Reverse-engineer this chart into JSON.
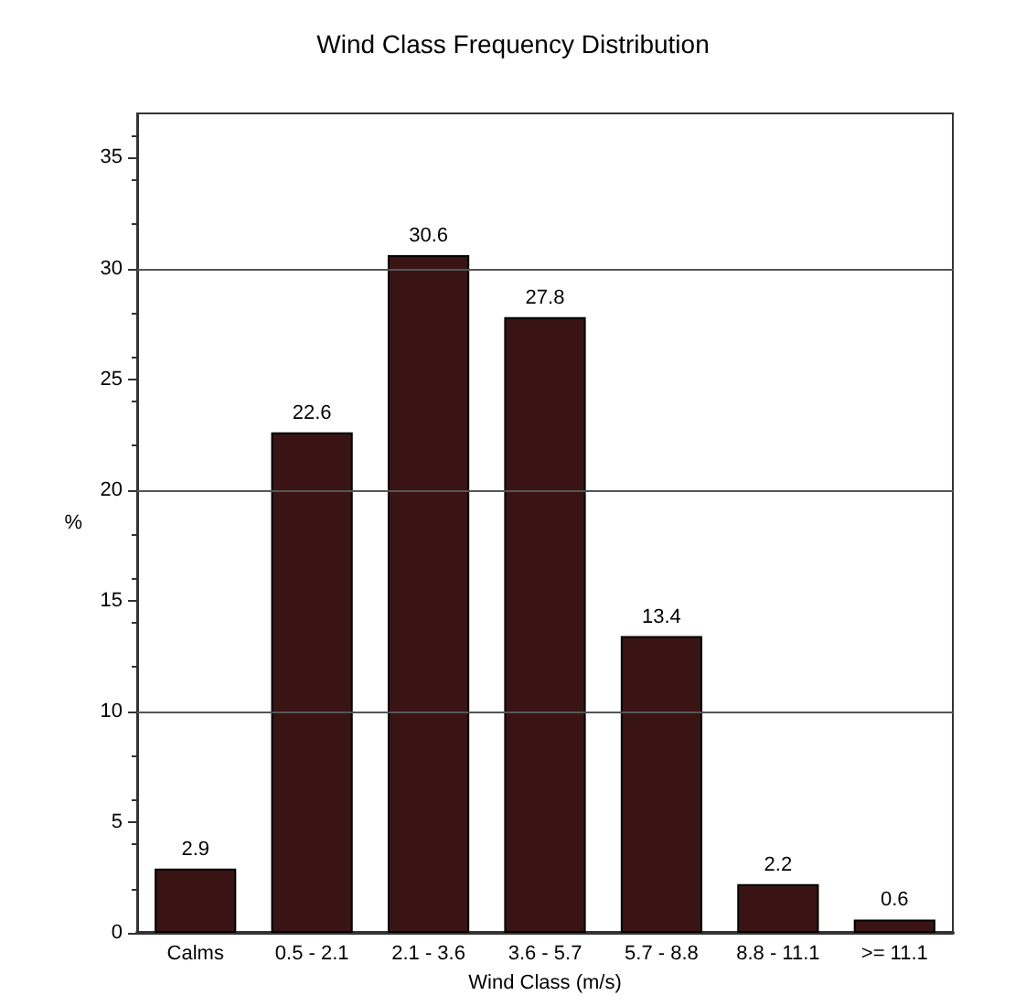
{
  "chart_data": {
    "type": "bar",
    "title": "Wind Class Frequency Distribution",
    "xlabel": "Wind Class (m/s)",
    "ylabel": "%",
    "categories": [
      "Calms",
      "0.5 - 2.1",
      "2.1 - 3.6",
      "3.6 - 5.7",
      "5.7 - 8.8",
      "8.8 - 11.1",
      ">= 11.1"
    ],
    "values": [
      2.9,
      22.6,
      30.6,
      27.8,
      13.4,
      2.2,
      0.6
    ],
    "color": "#3a1414",
    "data_labels": true,
    "ylim": [
      0,
      37
    ],
    "yticks": [
      0,
      5,
      10,
      15,
      20,
      25,
      30,
      35
    ],
    "ref_lines": [
      {
        "axis": "y",
        "value": 10,
        "color": "#555555"
      },
      {
        "axis": "y",
        "value": 20,
        "color": "#555555"
      },
      {
        "axis": "y",
        "value": 30,
        "color": "#555555"
      }
    ],
    "grid": false
  }
}
